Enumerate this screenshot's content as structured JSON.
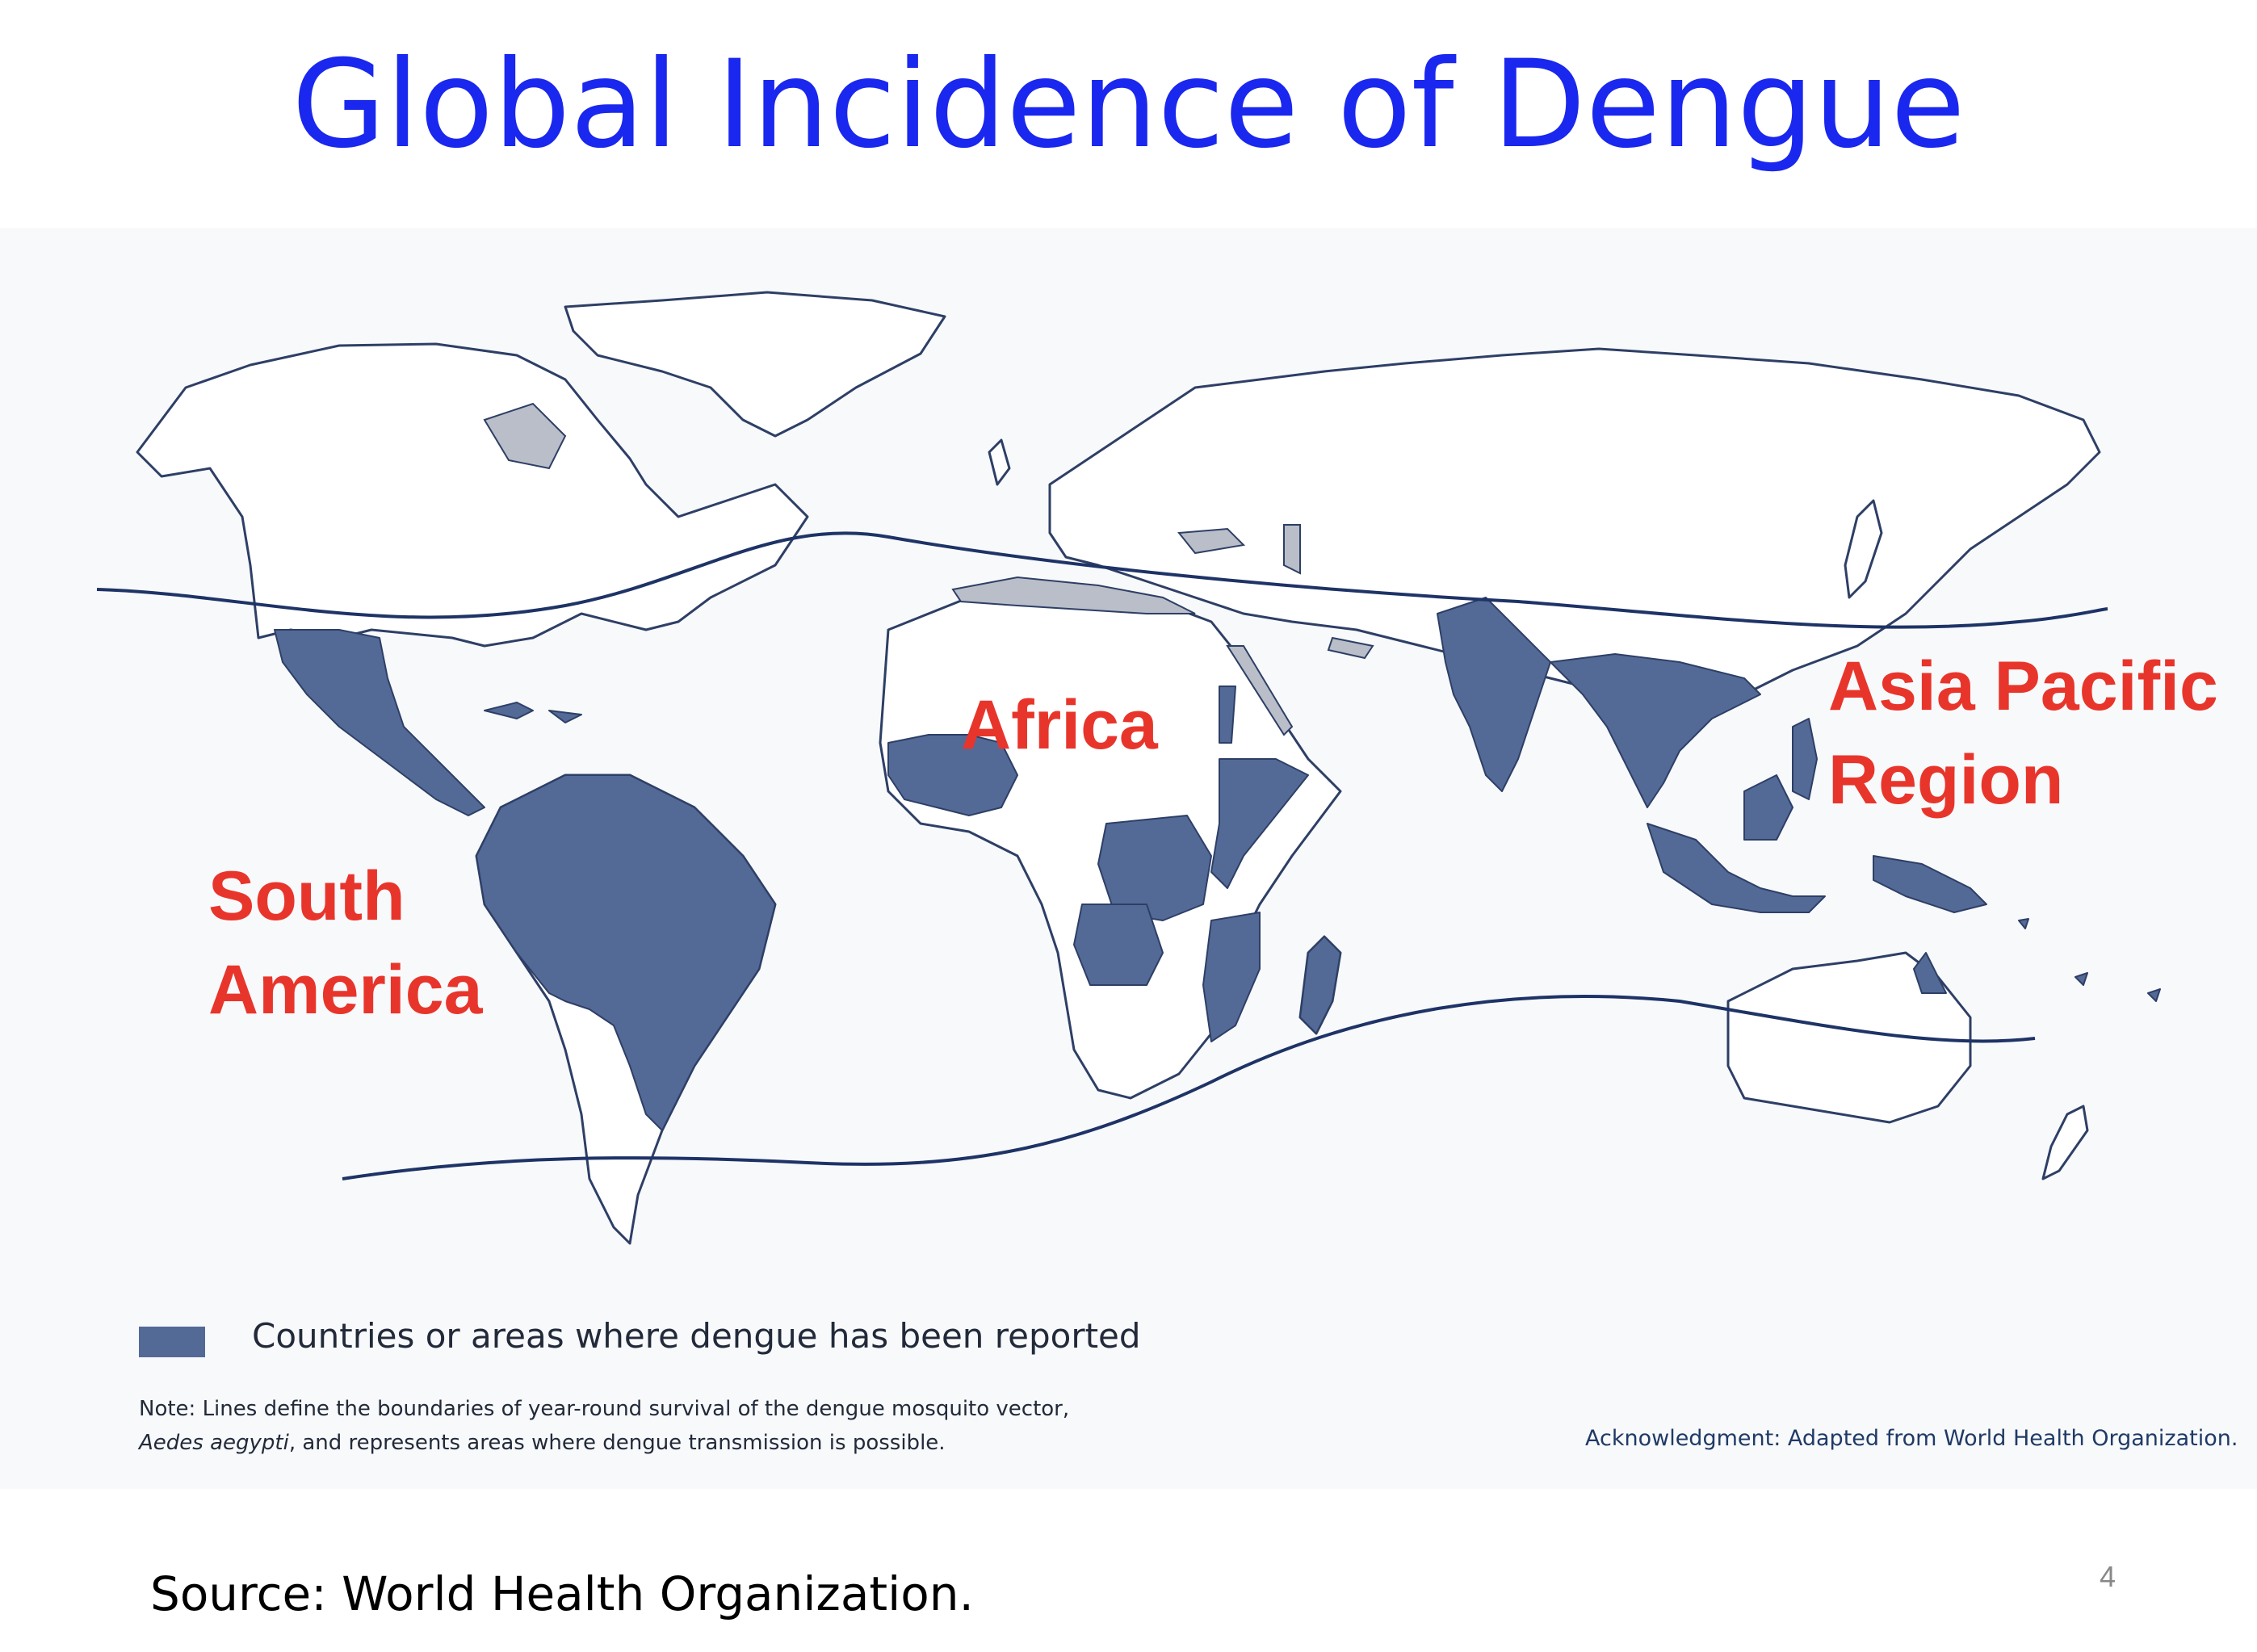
{
  "slide": {
    "title": "Global Incidence of Dengue",
    "source": "Source: World Health Organization.",
    "page_number": "4"
  },
  "map": {
    "region_labels": {
      "south_america": [
        "South",
        "America"
      ],
      "africa": "Africa",
      "asia_pacific": [
        "Asia Pacific",
        "Region"
      ]
    },
    "legend": {
      "label": "Countries or areas where dengue has been reported",
      "color": "#536a97"
    },
    "note": {
      "line1": "Note: Lines define the boundaries of year-round survival of the dengue mosquito vector,",
      "line2_italic": "Aedes aegypti",
      "line2_rest": ", and represents areas where dengue transmission is possible."
    },
    "acknowledgment": "Acknowledgment: Adapted from World Health Organization.",
    "colors": {
      "land": "#ffffff",
      "border": "#2e3f66",
      "dengue": "#536a97",
      "boundary_line": "#1e3366",
      "panel": "#f8f9fb"
    }
  }
}
